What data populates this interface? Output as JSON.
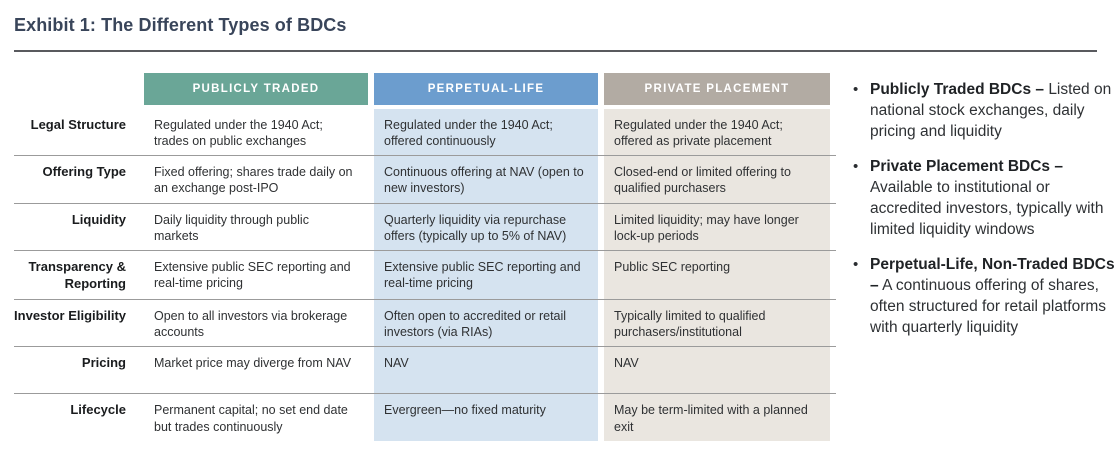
{
  "title": "Exhibit 1: The Different Types of BDCs",
  "colors": {
    "title_text": "#39455a",
    "publicly_traded_header": "#6aa697",
    "perpetual_life_header": "#6c9dce",
    "private_placement_header": "#b2aba3",
    "perpetual_life_cell": "#d5e3f0",
    "private_placement_cell": "#eae6e0",
    "row_separator": "#9b9b9b"
  },
  "table": {
    "column_headers": [
      "PUBLICLY TRADED",
      "PERPETUAL-LIFE",
      "PRIVATE PLACEMENT"
    ],
    "rows": [
      {
        "label": "Legal Structure",
        "cells": [
          "Regulated under the 1940 Act; trades on public exchanges",
          "Regulated under the 1940 Act; offered continuously",
          "Regulated under the 1940 Act; offered as private placement"
        ]
      },
      {
        "label": "Offering Type",
        "cells": [
          "Fixed offering; shares trade daily on an exchange post-IPO",
          "Continuous offering at NAV (open to new investors)",
          "Closed-end or limited offering to qualified purchasers"
        ]
      },
      {
        "label": "Liquidity",
        "cells": [
          "Daily liquidity through public markets",
          "Quarterly liquidity via repurchase offers (typically up to 5% of NAV)",
          "Limited liquidity; may have longer lock-up periods"
        ]
      },
      {
        "label": "Transparency & Reporting",
        "cells": [
          "Extensive public SEC reporting and real-time pricing",
          "Extensive public SEC reporting and real-time pricing",
          "Public SEC reporting"
        ]
      },
      {
        "label": "Investor Eligibility",
        "cells": [
          "Open to all investors via brokerage accounts",
          "Often open to accredited or retail investors (via RIAs)",
          "Typically limited to qualified purchasers/institutional"
        ]
      },
      {
        "label": "Pricing",
        "cells": [
          "Market price may diverge from NAV",
          "NAV",
          "NAV"
        ]
      },
      {
        "label": "Lifecycle",
        "cells": [
          "Permanent capital; no set end date but trades continuously",
          "Evergreen—no fixed maturity",
          "May be term-limited with a planned exit"
        ]
      }
    ]
  },
  "sidebar": {
    "bullet_glyph": "•",
    "bullets": [
      {
        "lead": "Publicly Traded BDCs –",
        "text": "Listed on national stock exchanges, daily pricing and liquidity"
      },
      {
        "lead": "Private Placement BDCs –",
        "text": "Available to institutional or accredited investors, typically with limited liquidity windows"
      },
      {
        "lead": "Perpetual-Life, Non-Traded BDCs –",
        "text": "A continuous offering of shares, often structured for retail platforms with quarterly liquidity"
      }
    ]
  }
}
